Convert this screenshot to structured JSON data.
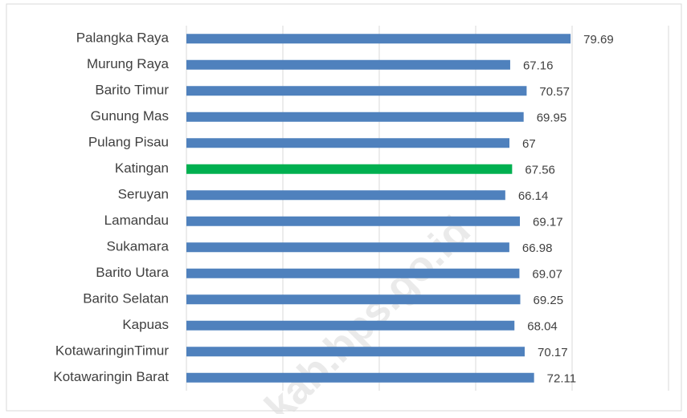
{
  "chart_data": {
    "type": "bar",
    "orientation": "horizontal",
    "categories": [
      "Palangka Raya",
      "Murung Raya",
      "Barito Timur",
      "Gunung Mas",
      "Pulang Pisau",
      "Katingan",
      "Seruyan",
      "Lamandau",
      "Sukamara",
      "Barito Utara",
      "Barito Selatan",
      "Kapuas",
      "KotawaringinTimur",
      "Kotawaringin Barat"
    ],
    "values": [
      79.69,
      67.16,
      70.57,
      69.95,
      67,
      67.56,
      66.14,
      69.17,
      66.98,
      69.07,
      69.25,
      68.04,
      70.17,
      72.11
    ],
    "colors": [
      "#4f81bd",
      "#4f81bd",
      "#4f81bd",
      "#4f81bd",
      "#4f81bd",
      "#00b050",
      "#4f81bd",
      "#4f81bd",
      "#4f81bd",
      "#4f81bd",
      "#4f81bd",
      "#4f81bd",
      "#4f81bd",
      "#4f81bd"
    ],
    "xlim": [
      0,
      100
    ],
    "xticks": [
      0,
      20,
      40,
      60,
      80,
      100
    ],
    "grid": true,
    "watermark": "kab.bps.go.id"
  }
}
